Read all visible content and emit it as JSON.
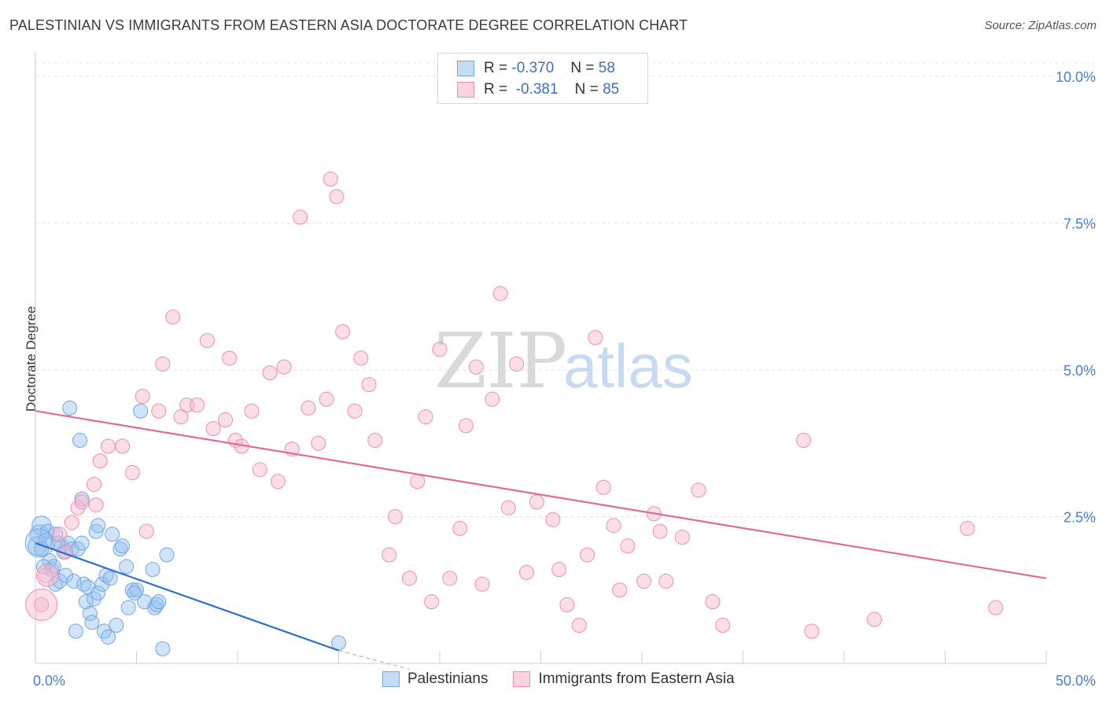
{
  "title": "PALESTINIAN VS IMMIGRANTS FROM EASTERN ASIA DOCTORATE DEGREE CORRELATION CHART",
  "source": "Source: ZipAtlas.com",
  "watermark": {
    "zip": "ZIP",
    "atlas": "atlas"
  },
  "legend": {
    "rows": [
      {
        "r_label": "R =",
        "r_value": "-0.370",
        "n_label": "N =",
        "n_value": "58",
        "color": "#6fa8e6"
      },
      {
        "r_label": "R =",
        "r_value": "-0.381",
        "n_label": "N =",
        "n_value": "85",
        "color": "#f08cae"
      }
    ]
  },
  "bottom_legend": [
    {
      "label": "Palestinians",
      "color": "#6fa8e6"
    },
    {
      "label": "Immigrants from Eastern Asia",
      "color": "#f08cae"
    }
  ],
  "chart_data": {
    "type": "scatter",
    "title": "PALESTINIAN VS IMMIGRANTS FROM EASTERN ASIA DOCTORATE DEGREE CORRELATION CHART",
    "xlabel": "",
    "ylabel": "Doctorate Degree",
    "xlim": [
      0,
      50
    ],
    "ylim": [
      0,
      10.5
    ],
    "x_tick_labels": [
      "0.0%",
      "50.0%"
    ],
    "y_ticks": [
      2.5,
      5.0,
      7.5,
      10.0
    ],
    "y_tick_labels": [
      "2.5%",
      "5.0%",
      "7.5%",
      "10.0%"
    ],
    "series": [
      {
        "name": "Palestinians",
        "color": "#6fa8e6",
        "trend": {
          "x": [
            0,
            15
          ],
          "y": [
            2.05,
            0.22
          ],
          "dashed_to": [
            18.5,
            -0.1
          ]
        },
        "points": [
          [
            0.1,
            2.0
          ],
          [
            0.2,
            2.2
          ],
          [
            0.3,
            2.35
          ],
          [
            0.5,
            2.1
          ],
          [
            0.6,
            2.25
          ],
          [
            0.7,
            1.75
          ],
          [
            0.8,
            1.6
          ],
          [
            0.9,
            1.65
          ],
          [
            1.0,
            2.2
          ],
          [
            1.0,
            1.35
          ],
          [
            1.2,
            1.4
          ],
          [
            1.3,
            2.0
          ],
          [
            1.4,
            1.9
          ],
          [
            1.5,
            1.5
          ],
          [
            1.6,
            2.05
          ],
          [
            1.7,
            4.35
          ],
          [
            1.8,
            1.95
          ],
          [
            1.9,
            1.4
          ],
          [
            2.0,
            0.55
          ],
          [
            2.1,
            1.95
          ],
          [
            2.2,
            3.8
          ],
          [
            2.3,
            2.05
          ],
          [
            2.4,
            1.35
          ],
          [
            2.5,
            1.05
          ],
          [
            2.6,
            1.3
          ],
          [
            2.7,
            0.85
          ],
          [
            2.8,
            0.7
          ],
          [
            2.9,
            1.1
          ],
          [
            3.0,
            2.25
          ],
          [
            3.1,
            1.2
          ],
          [
            3.1,
            2.35
          ],
          [
            3.3,
            1.35
          ],
          [
            3.4,
            0.55
          ],
          [
            3.5,
            1.5
          ],
          [
            3.6,
            0.45
          ],
          [
            3.7,
            1.45
          ],
          [
            3.8,
            2.2
          ],
          [
            4.0,
            0.65
          ],
          [
            4.2,
            1.95
          ],
          [
            4.3,
            2.0
          ],
          [
            4.5,
            1.65
          ],
          [
            4.6,
            0.95
          ],
          [
            4.8,
            1.25
          ],
          [
            5.0,
            1.25
          ],
          [
            5.2,
            4.3
          ],
          [
            5.4,
            1.05
          ],
          [
            5.8,
            1.6
          ],
          [
            5.9,
            0.95
          ],
          [
            6.0,
            1.0
          ],
          [
            6.3,
            0.25
          ],
          [
            6.5,
            1.85
          ],
          [
            0.3,
            1.95
          ],
          [
            0.4,
            1.65
          ],
          [
            2.3,
            2.8
          ],
          [
            6.1,
            1.05
          ],
          [
            4.9,
            1.2
          ],
          [
            15.0,
            0.35
          ],
          [
            1.1,
            2.05
          ]
        ]
      },
      {
        "name": "Immigrants from Eastern Asia",
        "color": "#f08cae",
        "trend": {
          "x": [
            0,
            50
          ],
          "y": [
            4.3,
            1.45
          ]
        },
        "points": [
          [
            0.3,
            1.0
          ],
          [
            0.5,
            1.5
          ],
          [
            1.2,
            2.2
          ],
          [
            1.5,
            1.9
          ],
          [
            1.8,
            2.4
          ],
          [
            2.1,
            2.65
          ],
          [
            2.3,
            2.75
          ],
          [
            2.9,
            3.05
          ],
          [
            3.0,
            2.7
          ],
          [
            3.2,
            3.45
          ],
          [
            3.6,
            3.7
          ],
          [
            4.3,
            3.7
          ],
          [
            4.8,
            3.25
          ],
          [
            5.3,
            4.55
          ],
          [
            5.5,
            2.25
          ],
          [
            6.1,
            4.3
          ],
          [
            6.3,
            5.1
          ],
          [
            6.8,
            5.9
          ],
          [
            7.2,
            4.2
          ],
          [
            7.5,
            4.4
          ],
          [
            8.0,
            4.4
          ],
          [
            8.5,
            5.5
          ],
          [
            8.8,
            4.0
          ],
          [
            9.4,
            4.15
          ],
          [
            9.6,
            5.2
          ],
          [
            9.9,
            3.8
          ],
          [
            10.2,
            3.7
          ],
          [
            10.7,
            4.3
          ],
          [
            11.1,
            3.3
          ],
          [
            11.6,
            4.95
          ],
          [
            12.0,
            3.1
          ],
          [
            12.3,
            5.05
          ],
          [
            12.7,
            3.65
          ],
          [
            13.1,
            7.6
          ],
          [
            13.5,
            4.35
          ],
          [
            14.0,
            3.75
          ],
          [
            14.4,
            4.5
          ],
          [
            14.6,
            8.25
          ],
          [
            14.9,
            7.95
          ],
          [
            15.2,
            5.65
          ],
          [
            15.8,
            4.3
          ],
          [
            16.1,
            5.2
          ],
          [
            16.5,
            4.75
          ],
          [
            16.8,
            3.8
          ],
          [
            17.5,
            1.85
          ],
          [
            17.8,
            2.5
          ],
          [
            18.5,
            1.45
          ],
          [
            18.9,
            3.1
          ],
          [
            19.3,
            4.2
          ],
          [
            19.6,
            1.05
          ],
          [
            20.0,
            5.35
          ],
          [
            20.5,
            1.45
          ],
          [
            21.0,
            2.3
          ],
          [
            21.3,
            4.05
          ],
          [
            21.8,
            5.05
          ],
          [
            22.1,
            1.35
          ],
          [
            22.6,
            4.5
          ],
          [
            23.0,
            6.3
          ],
          [
            23.4,
            2.65
          ],
          [
            23.8,
            5.1
          ],
          [
            24.3,
            1.55
          ],
          [
            24.8,
            2.75
          ],
          [
            25.6,
            2.45
          ],
          [
            25.9,
            1.6
          ],
          [
            26.3,
            1.0
          ],
          [
            26.9,
            0.65
          ],
          [
            27.3,
            1.85
          ],
          [
            27.7,
            5.55
          ],
          [
            28.1,
            3.0
          ],
          [
            28.6,
            2.35
          ],
          [
            28.9,
            1.25
          ],
          [
            29.3,
            2.0
          ],
          [
            30.1,
            1.4
          ],
          [
            30.6,
            2.55
          ],
          [
            30.9,
            2.25
          ],
          [
            31.2,
            1.4
          ],
          [
            32.0,
            2.15
          ],
          [
            32.8,
            2.95
          ],
          [
            33.5,
            1.05
          ],
          [
            34.0,
            0.65
          ],
          [
            38.0,
            3.8
          ],
          [
            38.4,
            0.55
          ],
          [
            41.5,
            0.75
          ],
          [
            46.1,
            2.3
          ],
          [
            47.5,
            0.95
          ]
        ]
      }
    ]
  }
}
